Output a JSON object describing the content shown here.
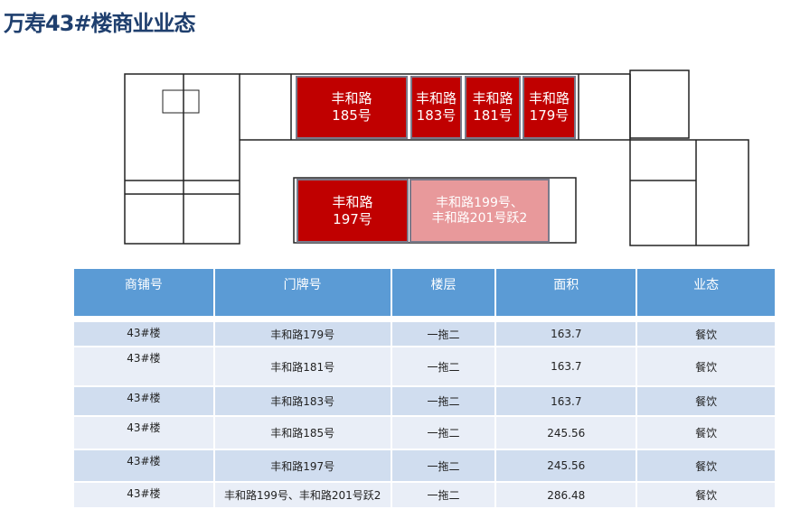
{
  "title": "万寿43#楼商业业态",
  "plan": {
    "shops": [
      {
        "id": "185",
        "line1": "丰和路",
        "line2": "185号"
      },
      {
        "id": "183",
        "line1": "丰和路",
        "line2": "183号"
      },
      {
        "id": "181",
        "line1": "丰和路",
        "line2": "181号"
      },
      {
        "id": "179",
        "line1": "丰和路",
        "line2": "179号"
      },
      {
        "id": "197",
        "line1": "丰和路",
        "line2": "197号"
      },
      {
        "id": "199",
        "line1": "丰和路199号、",
        "line2": "丰和路201号跃2"
      }
    ],
    "colors": {
      "leased": "#c00000",
      "highlight": "#e8999b"
    }
  },
  "table": {
    "headers": [
      "商铺号",
      "门牌号",
      "楼层",
      "面积",
      "业态"
    ],
    "rows": [
      [
        "43#楼",
        "丰和路179号",
        "一拖二",
        "163.7",
        "餐饮"
      ],
      [
        "43#楼",
        "丰和路181号",
        "一拖二",
        "163.7",
        "餐饮"
      ],
      [
        "43#楼",
        "丰和路183号",
        "一拖二",
        "163.7",
        "餐饮"
      ],
      [
        "43#楼",
        "丰和路185号",
        "一拖二",
        "245.56",
        "餐饮"
      ],
      [
        "43#楼",
        "丰和路197号",
        "一拖二",
        "245.56",
        "餐饮"
      ],
      [
        "43#楼",
        "丰和路199号、丰和路201号跃2",
        "一拖二",
        "286.48",
        "餐饮"
      ]
    ],
    "header_color": "#5b9bd5"
  }
}
